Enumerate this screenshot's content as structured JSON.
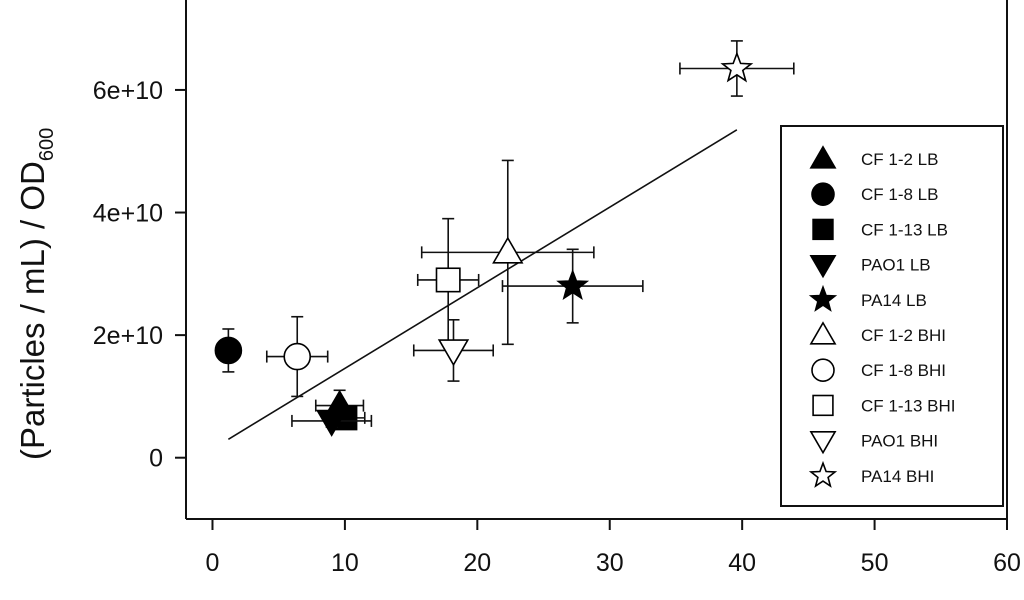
{
  "chart_data": {
    "type": "scatter",
    "title": "",
    "xlabel": "",
    "ylabel": "(Particles / mL) / OD",
    "ylabel_subscript": "600",
    "xlim": [
      -2,
      60
    ],
    "ylim": [
      -10000000000.0,
      75000000000.0
    ],
    "xticks": [
      0,
      10,
      20,
      30,
      40,
      50,
      60
    ],
    "xtick_labels": [
      "0",
      "10",
      "20",
      "30",
      "40",
      "50",
      "60"
    ],
    "yticks": [
      0,
      20000000000.0,
      40000000000.0,
      60000000000.0
    ],
    "ytick_labels": [
      "0",
      "2e+10",
      "4e+10",
      "6e+10"
    ],
    "grid": false,
    "legend_position": "right",
    "series": [
      {
        "name": "CF 1-2 LB",
        "marker": "triangle-up",
        "filled": true,
        "x": 9.6,
        "y": 8500000000.0,
        "xerr": 1.8,
        "yerr": 2500000000.0
      },
      {
        "name": "CF 1-8 LB",
        "marker": "circle",
        "filled": true,
        "x": 1.2,
        "y": 17500000000.0,
        "xerr": 0,
        "yerr": 3500000000.0
      },
      {
        "name": "CF 1-13 LB",
        "marker": "square",
        "filled": true,
        "x": 10.0,
        "y": 6500000000.0,
        "xerr": 1.5,
        "yerr": 1500000000.0
      },
      {
        "name": "PAO1 LB",
        "marker": "triangle-down",
        "filled": true,
        "x": 9.0,
        "y": 6000000000.0,
        "xerr": 3.0,
        "yerr": 1000000000.0
      },
      {
        "name": "PA14 LB",
        "marker": "star",
        "filled": true,
        "x": 27.2,
        "y": 28000000000.0,
        "xerr": 5.3,
        "yerr": 6000000000.0
      },
      {
        "name": "CF 1-2 BHI",
        "marker": "triangle-up",
        "filled": false,
        "x": 22.3,
        "y": 33500000000.0,
        "xerr": 6.5,
        "yerr": 15000000000.0
      },
      {
        "name": "CF 1-8 BHI",
        "marker": "circle",
        "filled": false,
        "x": 6.4,
        "y": 16500000000.0,
        "xerr": 2.3,
        "yerr": 6500000000.0
      },
      {
        "name": "CF 1-13 BHI",
        "marker": "square",
        "filled": false,
        "x": 17.8,
        "y": 29000000000.0,
        "xerr": 2.3,
        "yerr": 10000000000.0
      },
      {
        "name": "PAO1 BHI",
        "marker": "triangle-down",
        "filled": false,
        "x": 18.2,
        "y": 17500000000.0,
        "xerr": 3.0,
        "yerr": 5000000000.0
      },
      {
        "name": "PA14 BHI",
        "marker": "star",
        "filled": false,
        "x": 39.6,
        "y": 63500000000.0,
        "xerr": 4.3,
        "yerr": 4500000000.0
      }
    ],
    "trendline": {
      "x": [
        1.2,
        39.6
      ],
      "y": [
        3000000000.0,
        53500000000.0
      ]
    }
  }
}
